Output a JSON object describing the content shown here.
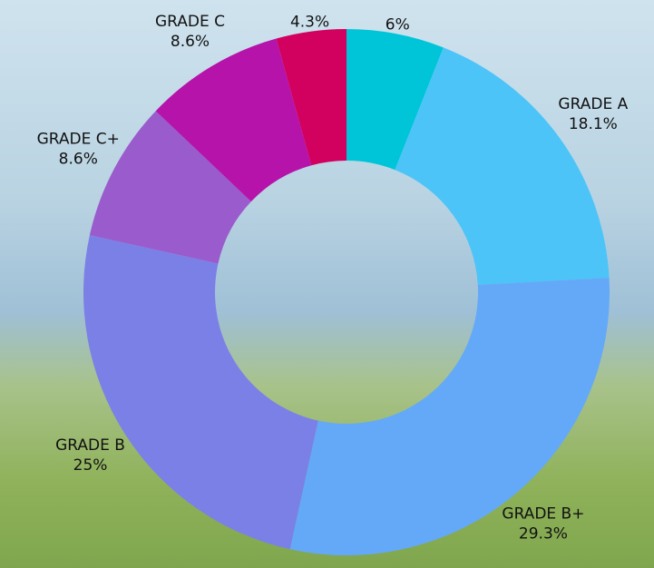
{
  "chart_data": {
    "type": "donut",
    "categories": [
      null,
      "GRADE A",
      "GRADE B+",
      "GRADE B",
      "GRADE C+",
      "GRADE C",
      null
    ],
    "values": [
      6,
      18.1,
      29.3,
      25,
      8.6,
      8.6,
      4.3
    ],
    "value_labels": [
      "6%",
      "18.1%",
      "29.3%",
      "25%",
      "8.6%",
      "8.6%",
      "4.3%"
    ],
    "colors": [
      "#00c5d9",
      "#4cc4f8",
      "#64a9f8",
      "#7b80e6",
      "#9a5bcc",
      "#b513a9",
      "#d2005f"
    ]
  }
}
